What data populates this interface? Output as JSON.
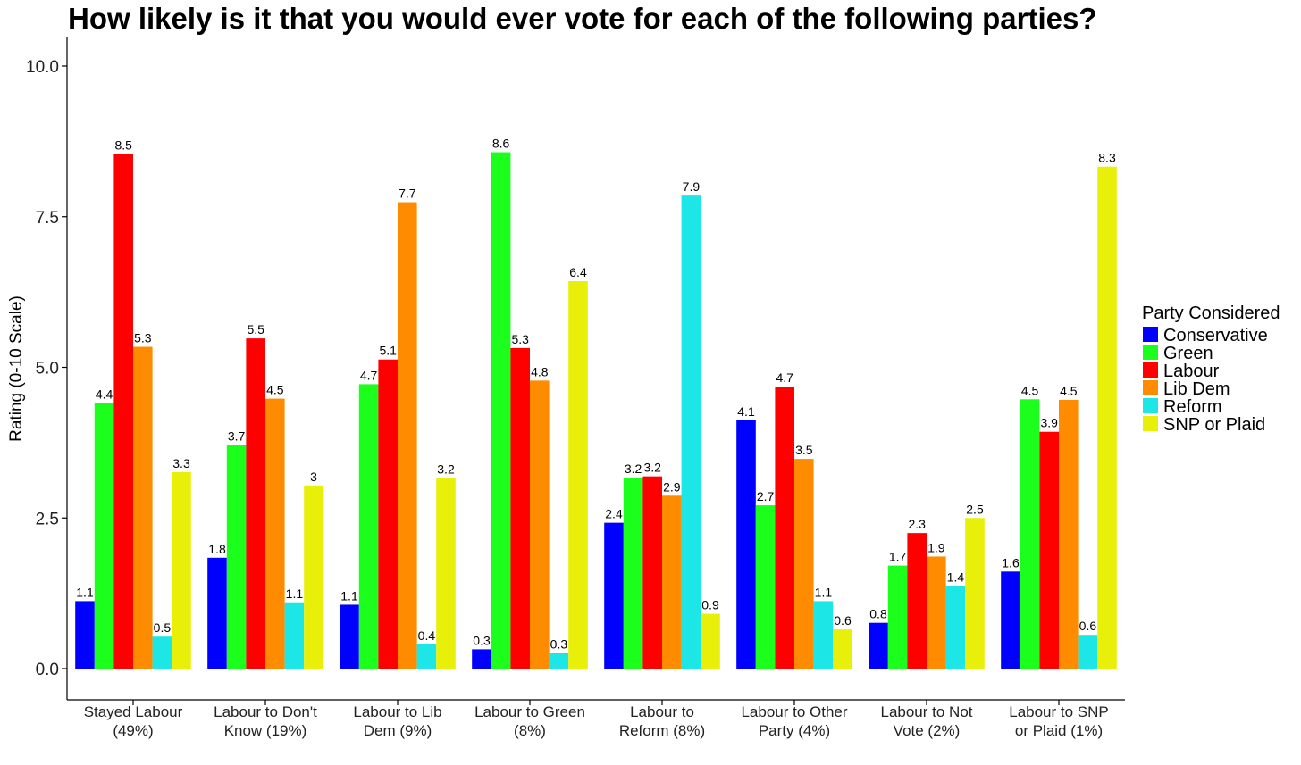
{
  "chart_data": {
    "type": "bar",
    "title": "How likely is it that you would ever vote for each of the following parties?",
    "ylabel": "Rating (0-10 Scale)",
    "xlabel": "",
    "ylim": [
      0,
      10.5
    ],
    "yticks": [
      "0.0",
      "2.5",
      "5.0",
      "7.5",
      "10.0"
    ],
    "ytick_values": [
      0,
      2.5,
      5,
      7.5,
      10
    ],
    "grid": false,
    "legend_title": "Party Considered",
    "legend_position": "right",
    "categories": [
      [
        "Stayed Labour",
        "(49%)"
      ],
      [
        "Labour to Don't",
        "Know (19%)"
      ],
      [
        "Labour to Lib",
        "Dem (9%)"
      ],
      [
        "Labour to Green",
        "(8%)"
      ],
      [
        "Labour to",
        "Reform (8%)"
      ],
      [
        "Labour to Other",
        "Party (4%)"
      ],
      [
        "Labour to Not",
        "Vote (2%)"
      ],
      [
        "Labour to SNP",
        "or Plaid (1%)"
      ]
    ],
    "series": [
      {
        "name": "Conservative",
        "color": "#0000FF",
        "values": [
          1.12,
          1.84,
          1.06,
          0.32,
          2.42,
          4.12,
          0.76,
          1.61
        ],
        "labels": [
          "1.1",
          "1.8",
          "1.1",
          "0.3",
          "2.4",
          "4.1",
          "0.8",
          "1.6"
        ]
      },
      {
        "name": "Green",
        "color": "#1CFF1C",
        "values": [
          4.41,
          3.71,
          4.72,
          8.57,
          3.17,
          2.71,
          1.71,
          4.47
        ],
        "labels": [
          "4.4",
          "3.7",
          "4.7",
          "8.6",
          "3.2",
          "2.7",
          "1.7",
          "4.5"
        ]
      },
      {
        "name": "Labour",
        "color": "#FF0000",
        "values": [
          8.54,
          5.48,
          5.13,
          5.32,
          3.19,
          4.68,
          2.25,
          3.93
        ],
        "labels": [
          "8.5",
          "5.5",
          "5.1",
          "5.3",
          "3.2",
          "4.7",
          "2.3",
          "3.9"
        ]
      },
      {
        "name": "Lib Dem",
        "color": "#FF8C00",
        "values": [
          5.34,
          4.48,
          7.74,
          4.78,
          2.87,
          3.48,
          1.86,
          4.46
        ],
        "labels": [
          "5.3",
          "4.5",
          "7.7",
          "4.8",
          "2.9",
          "3.5",
          "1.9",
          "4.5"
        ]
      },
      {
        "name": "Reform",
        "color": "#1CE6E6",
        "values": [
          0.53,
          1.1,
          0.4,
          0.26,
          7.85,
          1.12,
          1.37,
          0.56
        ],
        "labels": [
          "0.5",
          "1.1",
          "0.4",
          "0.3",
          "7.9",
          "1.1",
          "1.4",
          "0.6"
        ]
      },
      {
        "name": "SNP or Plaid",
        "color": "#E8F00A",
        "values": [
          3.26,
          3.04,
          3.16,
          6.43,
          0.91,
          0.65,
          2.5,
          8.33
        ],
        "labels": [
          "3.3",
          "3",
          "3.2",
          "6.4",
          "0.9",
          "0.6",
          "2.5",
          "8.3"
        ]
      }
    ]
  }
}
